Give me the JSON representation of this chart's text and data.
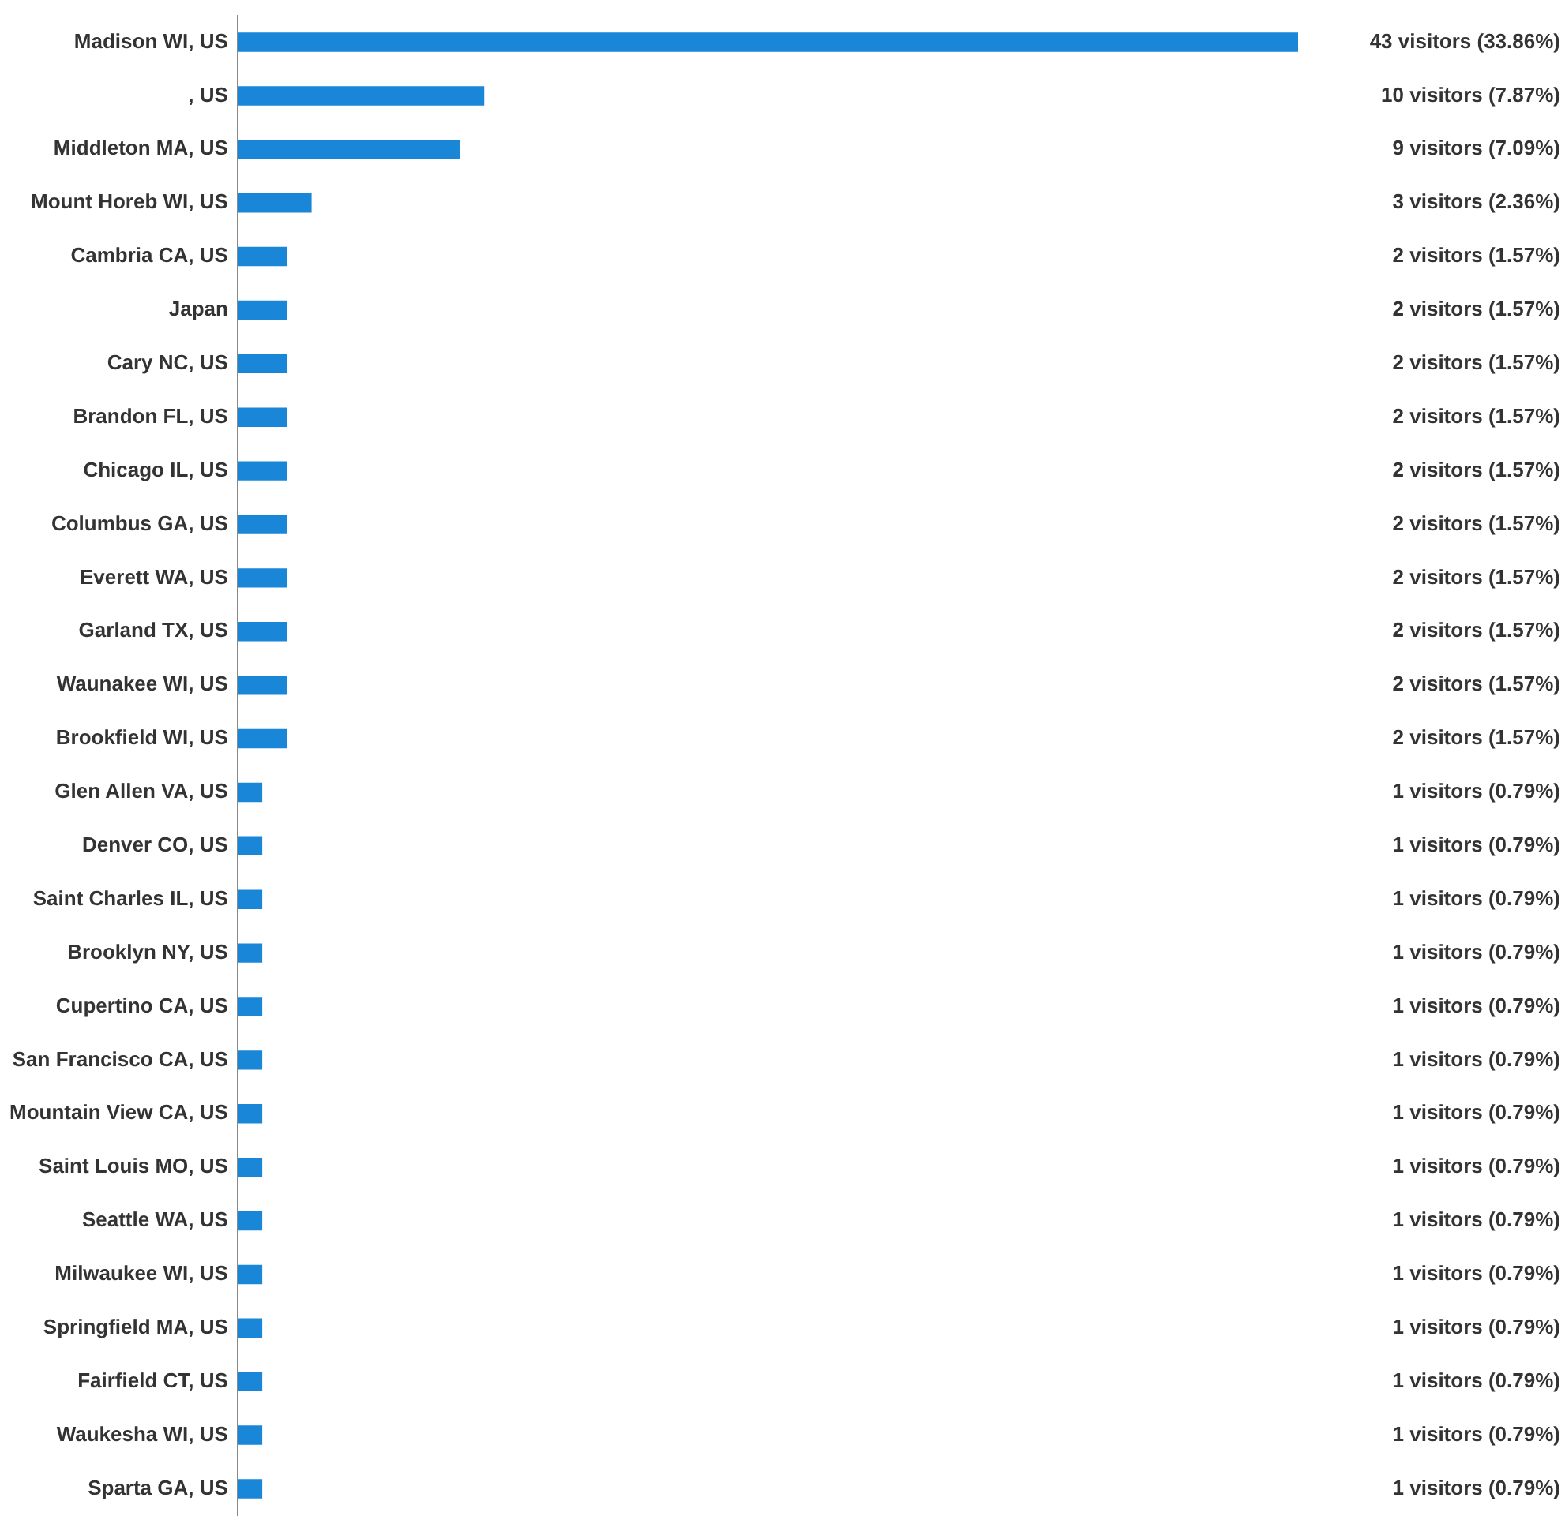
{
  "chart_data": {
    "type": "bar",
    "orientation": "horizontal",
    "grid": false,
    "legend": false,
    "tick_labels": "y",
    "categories": [
      "Madison WI, US",
      ", US",
      "Middleton MA, US",
      "Mount Horeb WI, US",
      "Cambria CA, US",
      "Japan",
      "Cary NC, US",
      "Brandon FL, US",
      "Chicago IL, US",
      "Columbus GA, US",
      "Everett WA, US",
      "Garland TX, US",
      "Waunakee WI, US",
      "Brookfield WI, US",
      "Glen Allen VA, US",
      "Denver CO, US",
      "Saint Charles IL, US",
      "Brooklyn NY, US",
      "Cupertino CA, US",
      "San Francisco CA, US",
      "Mountain View CA, US",
      "Saint Louis MO, US",
      "Seattle WA, US",
      "Milwaukee WI, US",
      "Springfield MA, US",
      "Fairfield CT, US",
      "Waukesha WI, US",
      "Sparta GA, US"
    ],
    "series": [
      {
        "color": "#1a86d8",
        "values": [
          43,
          10,
          9,
          3,
          2,
          2,
          2,
          2,
          2,
          2,
          2,
          2,
          2,
          2,
          1,
          1,
          1,
          1,
          1,
          1,
          1,
          1,
          1,
          1,
          1,
          1,
          1,
          1
        ],
        "value_labels": [
          "43 visitors (33.86%)",
          "10 visitors (7.87%)",
          "9 visitors (7.09%)",
          "3 visitors (2.36%)",
          "2 visitors (1.57%)",
          "2 visitors (1.57%)",
          "2 visitors (1.57%)",
          "2 visitors (1.57%)",
          "2 visitors (1.57%)",
          "2 visitors (1.57%)",
          "2 visitors (1.57%)",
          "2 visitors (1.57%)",
          "2 visitors (1.57%)",
          "2 visitors (1.57%)",
          "1 visitors (0.79%)",
          "1 visitors (0.79%)",
          "1 visitors (0.79%)",
          "1 visitors (0.79%)",
          "1 visitors (0.79%)",
          "1 visitors (0.79%)",
          "1 visitors (0.79%)",
          "1 visitors (0.79%)",
          "1 visitors (0.79%)",
          "1 visitors (0.79%)",
          "1 visitors (0.79%)",
          "1 visitors (0.79%)",
          "1 visitors (0.79%)",
          "1 visitors (0.79%)"
        ]
      }
    ]
  }
}
